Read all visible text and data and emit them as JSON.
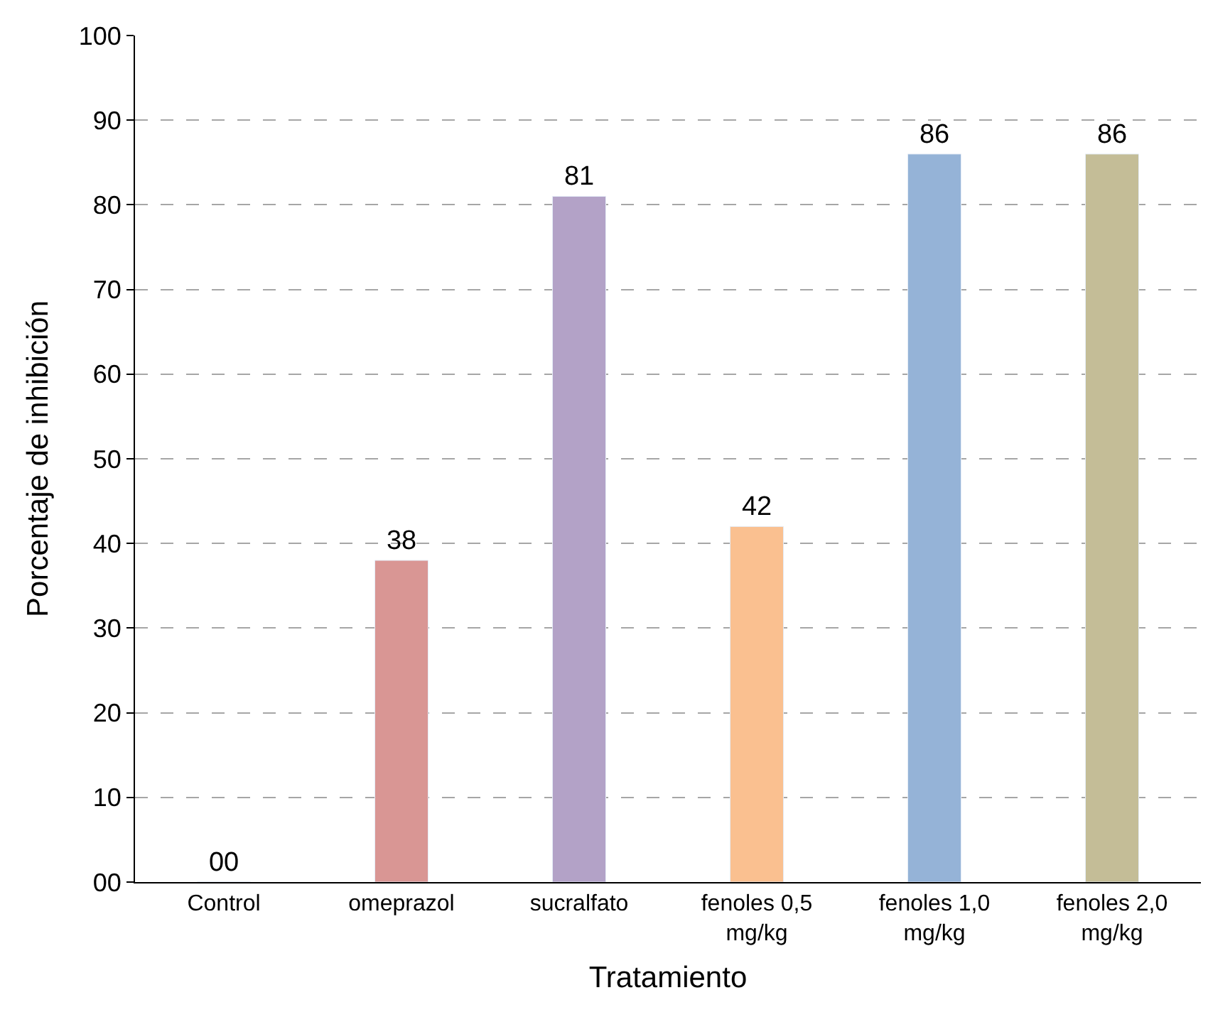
{
  "chart_data": {
    "type": "bar",
    "xlabel": "Tratamiento",
    "ylabel": "Porcentaje de inhibición",
    "categories": [
      "Control",
      "omeprazol",
      "sucralfato",
      "fenoles 0,5 mg/kg",
      "fenoles 1,0 mg/kg",
      "fenoles 2,0 mg/kg"
    ],
    "values": [
      0,
      38,
      81,
      42,
      86,
      86
    ],
    "colors": [
      null,
      "#d99694",
      "#b3a2c7",
      "#fac090",
      "#95b3d7",
      "#c4bd97"
    ],
    "value_labels": [
      "00",
      "38",
      "81",
      "42",
      "86",
      "86"
    ],
    "ylim": [
      0,
      100
    ],
    "yticks": [
      {
        "value": 0,
        "label": "00"
      },
      10,
      20,
      30,
      40,
      50,
      60,
      70,
      80,
      90,
      100
    ],
    "grid": "y",
    "line_style": "dashed",
    "legend": false
  }
}
